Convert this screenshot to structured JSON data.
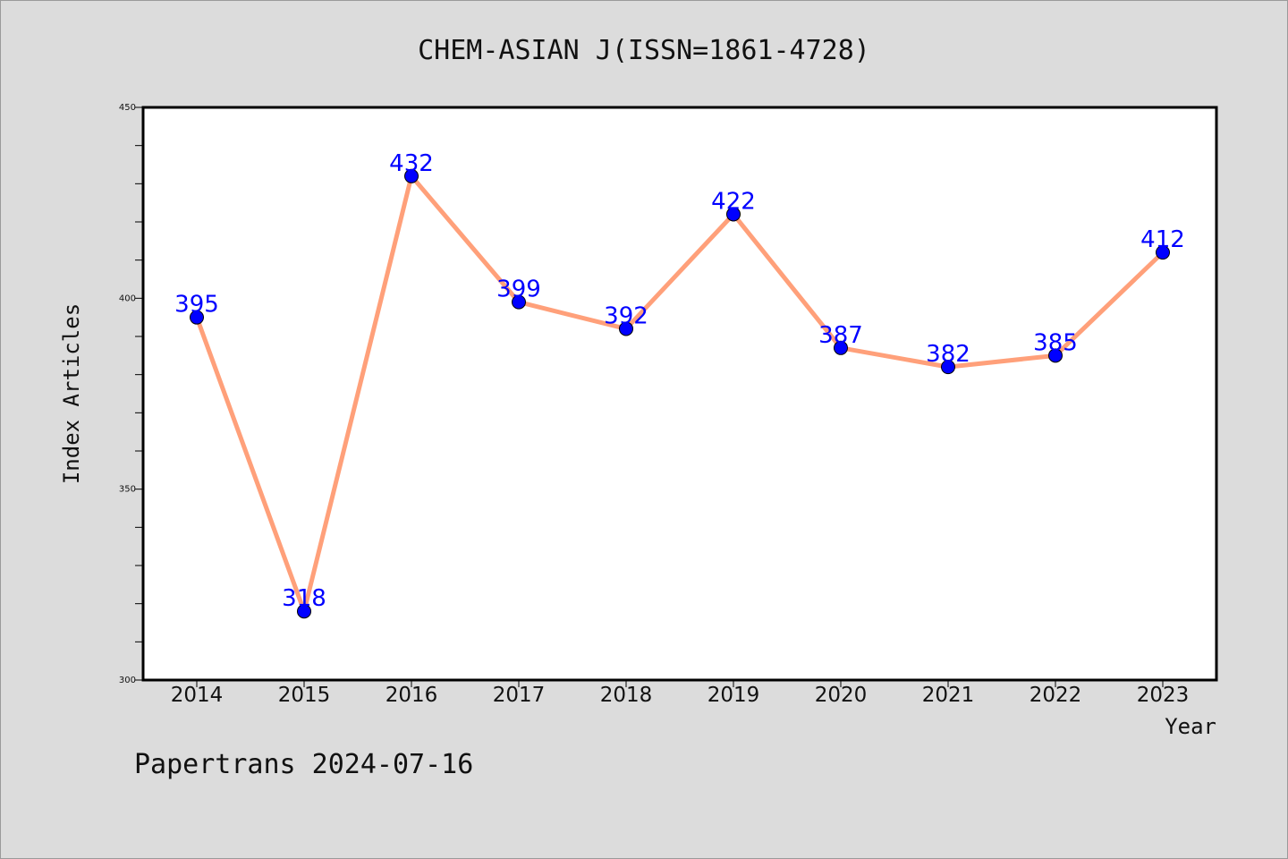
{
  "chart_data": {
    "type": "line",
    "title": "CHEM-ASIAN J(ISSN=1861-4728)",
    "xlabel": "Year",
    "ylabel": "Index Articles",
    "categories": [
      "2014",
      "2015",
      "2016",
      "2017",
      "2018",
      "2019",
      "2020",
      "2021",
      "2022",
      "2023"
    ],
    "series": [
      {
        "values": [
          395,
          318,
          432,
          399,
          392,
          422,
          387,
          382,
          385,
          412
        ]
      }
    ],
    "ylim": [
      300,
      450
    ],
    "yticks": [
      300,
      350,
      400,
      450
    ],
    "grid": false,
    "legend": "none",
    "line_color": "#ffa07a",
    "marker_color": "#0000ff",
    "label_color": "#0000ff"
  },
  "footer": {
    "text": "Papertrans 2024-07-16"
  }
}
